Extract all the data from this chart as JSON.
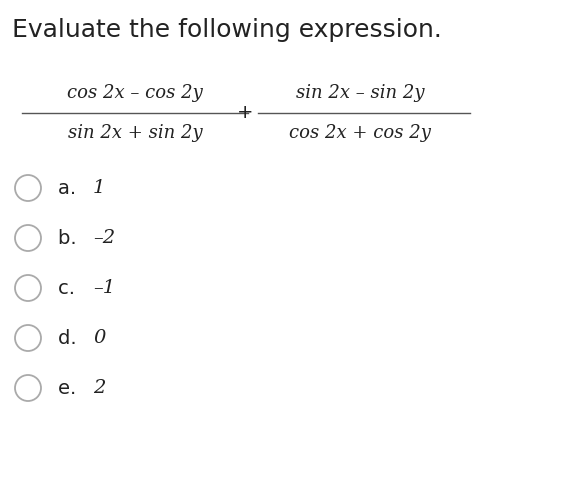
{
  "title": "Evaluate the following expression.",
  "title_fontsize": 18,
  "bg_color": "#ffffff",
  "fraction1_num": "cos 2x – cos 2y",
  "fraction1_den": "sin 2x + sin 2y",
  "fraction2_num": "sin 2x – sin 2y",
  "fraction2_den": "cos 2x + cos 2y",
  "plus_sign": "+",
  "choices": [
    {
      "label": "a. ",
      "value": "1"
    },
    {
      "label": "b. ",
      "value": "–2"
    },
    {
      "label": "c. ",
      "value": "–1"
    },
    {
      "label": "d. ",
      "value": "0"
    },
    {
      "label": "e. ",
      "value": "2"
    }
  ],
  "text_color": "#222222",
  "formula_fontsize": 13,
  "choice_label_fontsize": 14,
  "choice_value_fontsize": 14,
  "line_color": "#555555",
  "circle_color": "#aaaaaa"
}
